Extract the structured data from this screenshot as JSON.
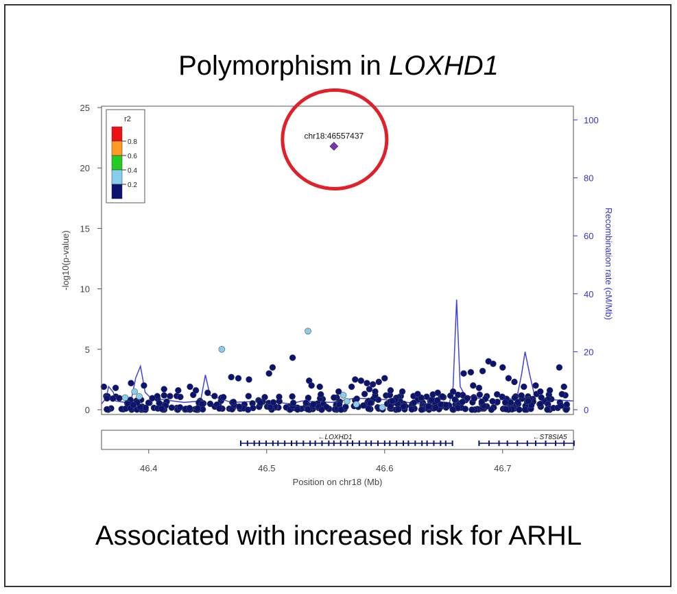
{
  "title_prefix": "Polymorphism in ",
  "title_gene": "LOXHD1",
  "caption": "Associated with increased risk for ARHL",
  "chart_data": {
    "type": "scatter",
    "xlabel": "Position on chr18 (Mb)",
    "ylabel": "-log10(p-value)",
    "y2label": "Recombination rate (cM/Mb)",
    "xlim": [
      46.36,
      46.76
    ],
    "ylim": [
      0,
      25
    ],
    "y2lim": [
      0,
      100
    ],
    "xticks": [
      "46.4",
      "46.5",
      "46.6",
      "46.7"
    ],
    "yticks": [
      "0",
      "5",
      "10",
      "15",
      "20",
      "25"
    ],
    "y2ticks": [
      "0",
      "20",
      "40",
      "60",
      "80",
      "100"
    ],
    "legend": {
      "title": "r2",
      "placement": "top-left",
      "entries": [
        {
          "label": "0.8",
          "color": "#ee1111"
        },
        {
          "label": "0.6",
          "color": "#ff9922"
        },
        {
          "label": "0.4",
          "color": "#22cc22"
        },
        {
          "label": "0.2",
          "color": "#88ccee"
        },
        {
          "label": "",
          "color": "#0a1470"
        }
      ]
    },
    "lead_snp": {
      "label": "chr18:46557437",
      "x": 46.557,
      "y": 21.8,
      "color": "#7a2fb5"
    },
    "highlight": {
      "shape": "circle",
      "color": "#e0202a"
    },
    "colors": {
      "low": "#0a1470",
      "light": "#88ccee",
      "recomb": "#4040e0",
      "axis2": "#3333cc"
    },
    "light_points": [
      {
        "x": 46.535,
        "y": 6.5
      },
      {
        "x": 46.462,
        "y": 5.0
      },
      {
        "x": 46.38,
        "y": 1.0
      },
      {
        "x": 46.388,
        "y": 1.5
      },
      {
        "x": 46.392,
        "y": 1.1
      },
      {
        "x": 46.565,
        "y": 1.2
      },
      {
        "x": 46.568,
        "y": 0.7
      },
      {
        "x": 46.576,
        "y": 0.45
      },
      {
        "x": 46.598,
        "y": 0.2
      }
    ],
    "dark_points": [
      {
        "x": 46.522,
        "y": 4.3
      },
      {
        "x": 46.505,
        "y": 3.5
      },
      {
        "x": 46.502,
        "y": 3.0
      },
      {
        "x": 46.485,
        "y": 2.5
      },
      {
        "x": 46.476,
        "y": 2.6
      },
      {
        "x": 46.47,
        "y": 2.7
      },
      {
        "x": 46.536,
        "y": 2.4
      },
      {
        "x": 46.538,
        "y": 2.0
      },
      {
        "x": 46.545,
        "y": 1.9
      },
      {
        "x": 46.396,
        "y": 2.0
      },
      {
        "x": 46.385,
        "y": 2.2
      },
      {
        "x": 46.362,
        "y": 1.9
      },
      {
        "x": 46.372,
        "y": 1.8
      },
      {
        "x": 46.435,
        "y": 1.9
      },
      {
        "x": 46.44,
        "y": 1.6
      },
      {
        "x": 46.425,
        "y": 1.6
      },
      {
        "x": 46.413,
        "y": 1.7
      },
      {
        "x": 46.45,
        "y": 1.4
      },
      {
        "x": 46.575,
        "y": 2.5
      },
      {
        "x": 46.58,
        "y": 2.4
      },
      {
        "x": 46.585,
        "y": 2.2
      },
      {
        "x": 46.59,
        "y": 2.1
      },
      {
        "x": 46.595,
        "y": 2.3
      },
      {
        "x": 46.6,
        "y": 2.6
      },
      {
        "x": 46.572,
        "y": 1.9
      },
      {
        "x": 46.587,
        "y": 1.7
      },
      {
        "x": 46.592,
        "y": 1.5
      },
      {
        "x": 46.605,
        "y": 1.6
      },
      {
        "x": 46.583,
        "y": 1.3
      },
      {
        "x": 46.561,
        "y": 1.5
      },
      {
        "x": 46.688,
        "y": 4.0
      },
      {
        "x": 46.692,
        "y": 3.8
      },
      {
        "x": 46.683,
        "y": 3.2
      },
      {
        "x": 46.673,
        "y": 3.1
      },
      {
        "x": 46.667,
        "y": 3.0
      },
      {
        "x": 46.7,
        "y": 3.5
      },
      {
        "x": 46.705,
        "y": 2.6
      },
      {
        "x": 46.71,
        "y": 2.3
      },
      {
        "x": 46.718,
        "y": 1.9
      },
      {
        "x": 46.728,
        "y": 2.0
      },
      {
        "x": 46.748,
        "y": 3.5
      },
      {
        "x": 46.752,
        "y": 1.9
      },
      {
        "x": 46.74,
        "y": 1.6
      },
      {
        "x": 46.732,
        "y": 1.5
      },
      {
        "x": 46.658,
        "y": 1.5
      },
      {
        "x": 46.645,
        "y": 1.4
      },
      {
        "x": 46.628,
        "y": 1.3
      },
      {
        "x": 46.615,
        "y": 1.5
      },
      {
        "x": 46.675,
        "y": 2.0
      },
      {
        "x": 46.68,
        "y": 1.8
      }
    ],
    "recombination": [
      [
        46.36,
        2.0
      ],
      [
        46.364,
        4.0
      ],
      [
        46.366,
        8.0
      ],
      [
        46.37,
        6.0
      ],
      [
        46.372,
        3.0
      ],
      [
        46.38,
        2.5
      ],
      [
        46.385,
        3.0
      ],
      [
        46.389,
        11.0
      ],
      [
        46.393,
        15.0
      ],
      [
        46.397,
        6.0
      ],
      [
        46.402,
        4.0
      ],
      [
        46.43,
        2.5
      ],
      [
        46.444,
        3.0
      ],
      [
        46.448,
        12.0
      ],
      [
        46.452,
        5.0
      ],
      [
        46.47,
        2.5
      ],
      [
        46.5,
        3.0
      ],
      [
        46.52,
        2.0
      ],
      [
        46.53,
        3.0
      ],
      [
        46.555,
        2.5
      ],
      [
        46.575,
        4.0
      ],
      [
        46.6,
        3.5
      ],
      [
        46.63,
        2.0
      ],
      [
        46.655,
        2.5
      ],
      [
        46.658,
        8.0
      ],
      [
        46.661,
        38.0
      ],
      [
        46.664,
        8.0
      ],
      [
        46.668,
        5.0
      ],
      [
        46.69,
        3.0
      ],
      [
        46.712,
        4.0
      ],
      [
        46.716,
        12.0
      ],
      [
        46.719,
        20.0
      ],
      [
        46.723,
        12.0
      ],
      [
        46.727,
        5.0
      ],
      [
        46.74,
        3.5
      ],
      [
        46.76,
        3.0
      ]
    ],
    "genes": [
      {
        "name": "LOXHD1",
        "start": 46.478,
        "end": 46.657
      },
      {
        "name": "ST8SIA5",
        "start": 46.68,
        "end": 46.76
      }
    ]
  }
}
